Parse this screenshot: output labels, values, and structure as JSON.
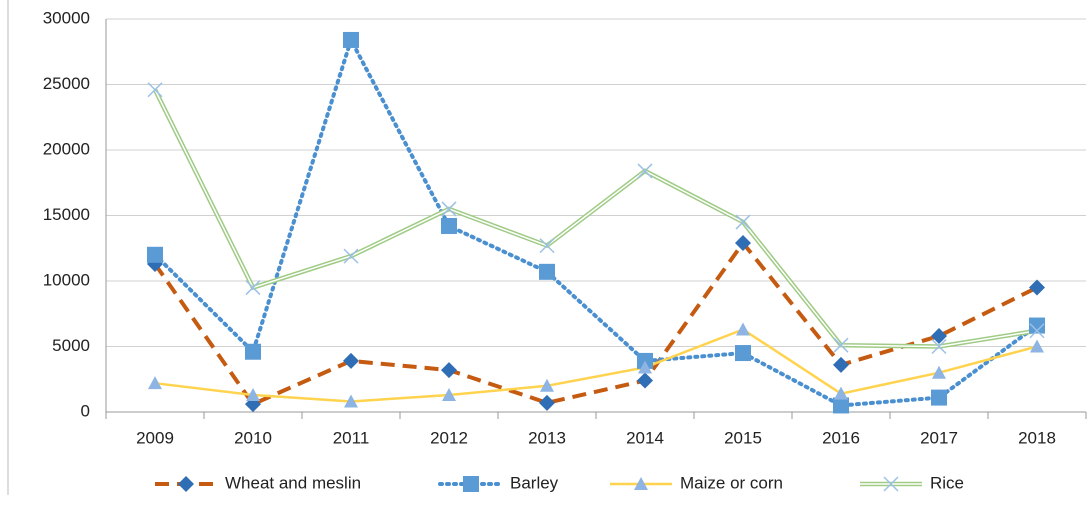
{
  "chart_data": {
    "type": "line",
    "categories": [
      "2009",
      "2010",
      "2011",
      "2012",
      "2013",
      "2014",
      "2015",
      "2016",
      "2017",
      "2018"
    ],
    "series": [
      {
        "name": "Wheat and meslin",
        "color": "#c55a11",
        "dash": "dashed",
        "marker": "diamond",
        "marker_color": "#2f6db5",
        "values": [
          11300,
          600,
          3900,
          3200,
          700,
          2400,
          12900,
          3600,
          5800,
          9500
        ]
      },
      {
        "name": "Barley",
        "color": "#4a8fd0",
        "dash": "dotted",
        "marker": "square",
        "marker_color": "#5b9bd5",
        "values": [
          12000,
          4600,
          28400,
          14200,
          10700,
          3900,
          4500,
          500,
          1100,
          6600
        ]
      },
      {
        "name": "Maize or corn",
        "color": "#ffd34e",
        "dash": "solid",
        "marker": "triangle",
        "marker_color": "#8db4e2",
        "values": [
          2200,
          1300,
          800,
          1300,
          2000,
          3400,
          6300,
          1400,
          3000,
          5000
        ]
      },
      {
        "name": "Rice",
        "color": "#9fcb85",
        "dash": "double",
        "marker": "cross",
        "marker_color": "#9cc0e6",
        "values": [
          24600,
          9500,
          11900,
          15500,
          12700,
          18400,
          14500,
          5100,
          5000,
          6200
        ]
      }
    ],
    "ylim": [
      0,
      30000
    ],
    "yticks": [
      0,
      5000,
      10000,
      15000,
      20000,
      25000,
      30000
    ],
    "grid": true,
    "legend": "bottom"
  }
}
